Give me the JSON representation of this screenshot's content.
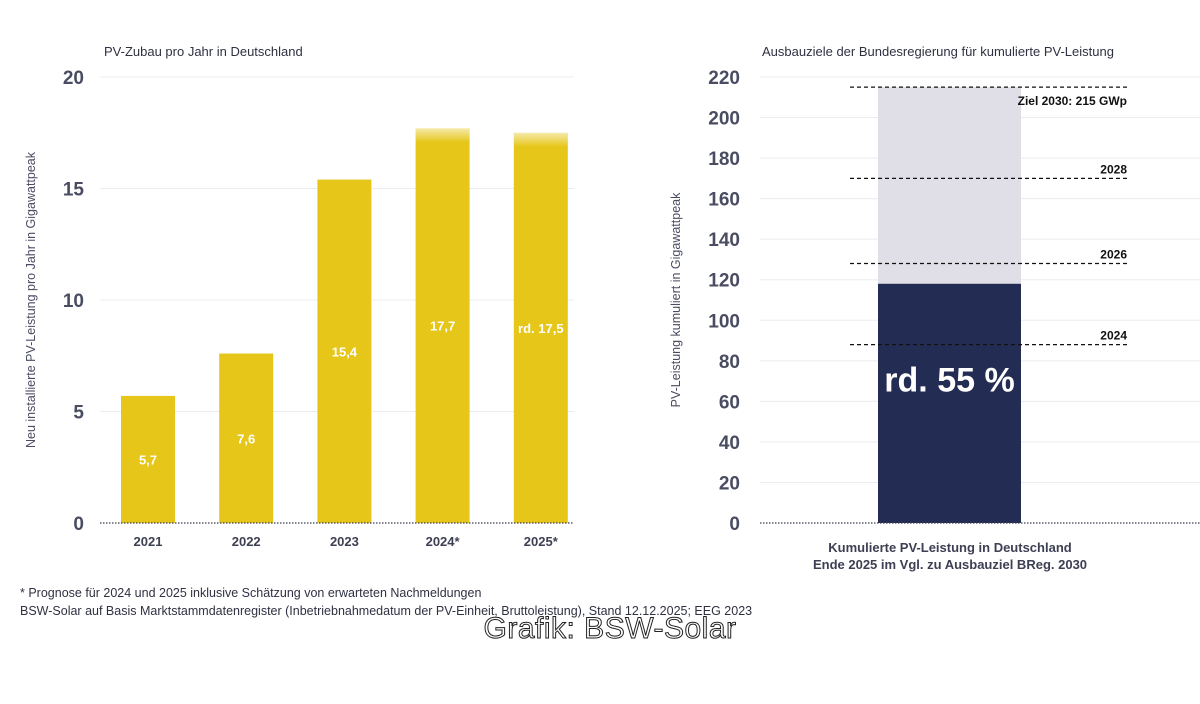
{
  "chart_data": [
    {
      "type": "bar",
      "title": "PV-Zubau pro Jahr in Deutschland",
      "ylabel": "Neu installierte PV-Leistung pro Jahr in Gigawattpeak",
      "xlabel": "",
      "ylim": [
        0,
        20
      ],
      "yticks": [
        0,
        5,
        10,
        15,
        20
      ],
      "grid": true,
      "categories": [
        "2021",
        "2022",
        "2023",
        "2024*",
        "2025*"
      ],
      "values": [
        5.7,
        7.6,
        15.4,
        17.7,
        17.5
      ],
      "data_labels": [
        "5,7",
        "7,6",
        "15,4",
        "17,7",
        "rd. 17,5"
      ],
      "estimated": [
        false,
        false,
        false,
        true,
        true
      ],
      "color": "#e6c619"
    },
    {
      "type": "bar",
      "title": "Ausbauziele der Bundesregierung für kumulierte PV-Leistung",
      "ylabel": "PV-Leistung kumuliert in Gigawattpeak",
      "ylim": [
        0,
        220
      ],
      "yticks": [
        0,
        20,
        40,
        60,
        80,
        100,
        120,
        140,
        160,
        180,
        200,
        220
      ],
      "grid": true,
      "categories": [
        "Kumulierte PV-Leistung in Deutschland",
        "Ende 2025 im Vgl. zu Ausbauziel BReg. 2030"
      ],
      "target_value": 215,
      "cumulative_value": 118,
      "share_label": "rd. 55 %",
      "reference_lines": [
        {
          "label": "Ziel 2030: 215 GWp",
          "value": 215
        },
        {
          "label": "2028",
          "value": 170
        },
        {
          "label": "2026",
          "value": 128
        },
        {
          "label": "2024",
          "value": 88
        }
      ],
      "colors": {
        "cumulative": "#232c52",
        "target": "#e0dfe7"
      }
    }
  ],
  "footnotes": {
    "note": "* Prognose für 2024 und 2025 inklusive Schätzung von erwarteten Nachmeldungen",
    "source": "BSW-Solar auf Basis Marktstammdatenregister (Inbetriebnahmedatum der PV-Einheit, Bruttoleistung), Stand 12.12.2025; EEG 2023"
  },
  "credit": "Grafik: BSW-Solar"
}
